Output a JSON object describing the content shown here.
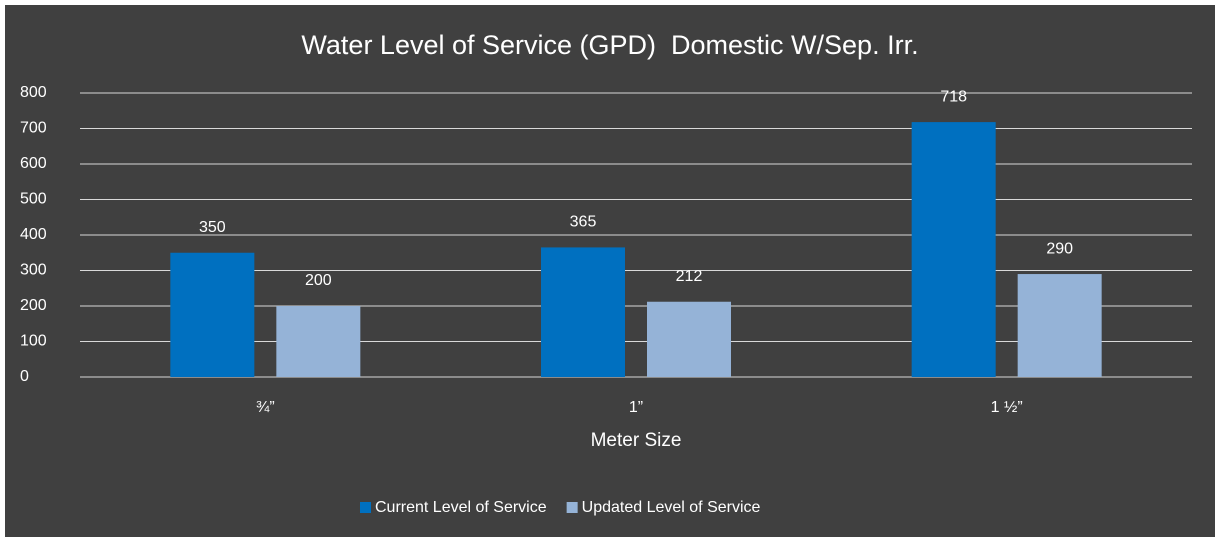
{
  "chart_data": {
    "type": "bar",
    "title": "Water Level of Service (GPD)  Domestic W/Sep. Irr.",
    "x_label": "Meter Size",
    "categories": [
      "¾”",
      "1”",
      "1 ½”"
    ],
    "series": [
      {
        "name": "Current Level of Service",
        "color": "#0070c0",
        "values": [
          350,
          365,
          718
        ]
      },
      {
        "name": "Updated Level of Service",
        "color": "#95b3d7",
        "values": [
          200,
          212,
          290
        ]
      }
    ],
    "ylim": [
      0,
      800
    ],
    "yticks": [
      0,
      100,
      200,
      300,
      400,
      500,
      600,
      700,
      800
    ],
    "grid": true,
    "legend": "bottom",
    "background": "#404040"
  }
}
